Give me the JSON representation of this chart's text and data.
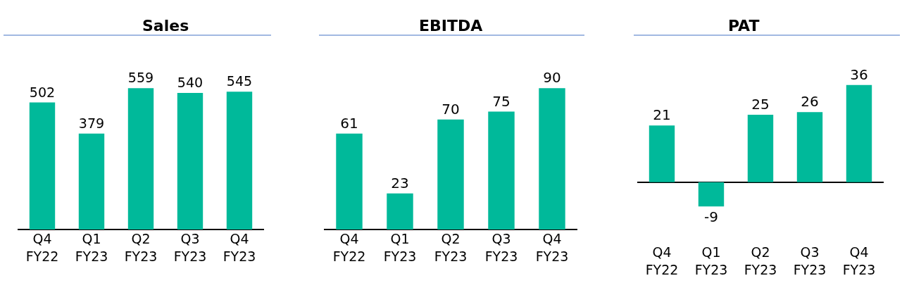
{
  "chart_data": [
    {
      "type": "bar",
      "title": "Sales",
      "categories": [
        "Q4\nFY22",
        "Q1\nFY23",
        "Q2\nFY23",
        "Q3\nFY23",
        "Q4\nFY23"
      ],
      "values": [
        502,
        379,
        559,
        540,
        545
      ],
      "color": "#00b99a",
      "data_labels": true
    },
    {
      "type": "bar",
      "title": "EBITDA",
      "categories": [
        "Q4\nFY22",
        "Q1\nFY23",
        "Q2\nFY23",
        "Q3\nFY23",
        "Q4\nFY23"
      ],
      "values": [
        61,
        23,
        70,
        75,
        90
      ],
      "color": "#00b99a",
      "data_labels": true
    },
    {
      "type": "bar",
      "title": "PAT",
      "categories": [
        "Q4\nFY22",
        "Q1\nFY23",
        "Q2\nFY23",
        "Q3\nFY23",
        "Q4\nFY23"
      ],
      "values": [
        21,
        -9,
        25,
        26,
        36
      ],
      "color": "#00b99a",
      "data_labels": true
    }
  ]
}
